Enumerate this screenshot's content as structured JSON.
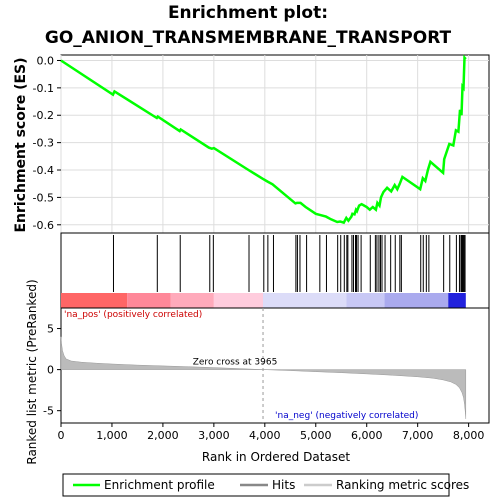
{
  "chart_data": {
    "type": "line",
    "title": [
      "Enrichment plot:",
      "GO_ANION_TRANSMEMBRANE_TRANSPORT"
    ],
    "xlabel": "Rank in Ordered Dataset",
    "es_panel": {
      "ylabel": "Enrichment score (ES)",
      "ylim": [
        -0.63,
        0.02
      ],
      "yticks": [
        0.0,
        -0.1,
        -0.2,
        -0.3,
        -0.4,
        -0.5,
        -0.6
      ],
      "ytick_labels": [
        "0.0",
        "-0.1",
        "-0.2",
        "-0.3",
        "-0.4",
        "-0.5",
        "-0.6"
      ],
      "grid": true,
      "series": {
        "name": "Enrichment profile",
        "color": "#00ff00",
        "x": [
          0,
          1020,
          1050,
          1880,
          1900,
          2330,
          2350,
          2900,
          2960,
          3000,
          3680,
          3960,
          4050,
          4150,
          4600,
          4630,
          4700,
          4800,
          5000,
          5100,
          5200,
          5300,
          5420,
          5480,
          5550,
          5600,
          5640,
          5700,
          5720,
          5760,
          5790,
          5810,
          5850,
          5900,
          5950,
          6000,
          6060,
          6120,
          6180,
          6210,
          6250,
          6280,
          6330,
          6400,
          6480,
          6550,
          6600,
          6650,
          6700,
          7050,
          7100,
          7150,
          7200,
          7250,
          7500,
          7520,
          7620,
          7700,
          7750,
          7800,
          7830,
          7860,
          7880,
          7900,
          7920,
          7945
        ],
        "y": [
          0.0,
          -0.125,
          -0.113,
          -0.21,
          -0.205,
          -0.258,
          -0.252,
          -0.318,
          -0.322,
          -0.32,
          -0.4,
          -0.432,
          -0.442,
          -0.452,
          -0.522,
          -0.52,
          -0.52,
          -0.535,
          -0.56,
          -0.565,
          -0.57,
          -0.58,
          -0.59,
          -0.588,
          -0.592,
          -0.575,
          -0.585,
          -0.57,
          -0.56,
          -0.562,
          -0.545,
          -0.55,
          -0.53,
          -0.525,
          -0.53,
          -0.535,
          -0.545,
          -0.535,
          -0.545,
          -0.52,
          -0.53,
          -0.5,
          -0.48,
          -0.465,
          -0.478,
          -0.455,
          -0.47,
          -0.45,
          -0.425,
          -0.47,
          -0.43,
          -0.44,
          -0.4,
          -0.37,
          -0.41,
          -0.36,
          -0.305,
          -0.31,
          -0.255,
          -0.26,
          -0.18,
          -0.2,
          -0.095,
          -0.1,
          0.01,
          0.005
        ]
      }
    },
    "hits_panel": {
      "hit_ranks": [
        1030,
        1890,
        2340,
        2920,
        2990,
        3690,
        3980,
        4060,
        4170,
        4610,
        4640,
        4690,
        4820,
        5080,
        5210,
        5430,
        5490,
        5560,
        5610,
        5630,
        5710,
        5740,
        5780,
        5800,
        5830,
        5890,
        6070,
        6170,
        6200,
        6240,
        6270,
        6300,
        6360,
        6470,
        6560,
        6650,
        6680,
        7060,
        7110,
        7170,
        7220,
        7510,
        7630,
        7760,
        7820,
        7850,
        7870,
        7890,
        7910,
        7930
      ],
      "color_bands": [
        {
          "from": 0,
          "to": 1300,
          "color": "#ff6666"
        },
        {
          "from": 1300,
          "to": 2150,
          "color": "#ff8899"
        },
        {
          "from": 2150,
          "to": 3000,
          "color": "#ffaabb"
        },
        {
          "from": 3000,
          "to": 3965,
          "color": "#ffccdd"
        },
        {
          "from": 3965,
          "to": 5600,
          "color": "#dcdcf8"
        },
        {
          "from": 5600,
          "to": 6350,
          "color": "#c8c8f5"
        },
        {
          "from": 6350,
          "to": 7600,
          "color": "#aaaaee"
        },
        {
          "from": 7600,
          "to": 7945,
          "color": "#2222dd"
        }
      ]
    },
    "metric_panel": {
      "ylabel": "Ranked list metric (PreRanked)",
      "ylim": [
        -6.5,
        7.5
      ],
      "yticks": [
        5,
        0,
        -5
      ],
      "ytick_labels": [
        "5",
        "0",
        "-5"
      ],
      "zero_cross_label": "Zero cross at 3965",
      "zero_cross_rank": 3965,
      "pos_label": "'na_pos' (positively correlated)",
      "neg_label": "'na_neg' (negatively correlated)",
      "pos_color": "#cc0000",
      "neg_color": "#0000cc",
      "profile": {
        "x": [
          0,
          10,
          30,
          60,
          100,
          200,
          400,
          700,
          1000,
          1500,
          2000,
          2500,
          3000,
          3500,
          3965,
          4500,
          5000,
          5500,
          6000,
          6500,
          7000,
          7300,
          7500,
          7650,
          7750,
          7820,
          7870,
          7900,
          7920,
          7935,
          7945
        ],
        "y": [
          4.0,
          3.2,
          2.3,
          1.7,
          1.3,
          1.05,
          0.9,
          0.78,
          0.68,
          0.55,
          0.45,
          0.35,
          0.25,
          0.12,
          0.0,
          -0.12,
          -0.25,
          -0.38,
          -0.52,
          -0.68,
          -0.88,
          -1.05,
          -1.25,
          -1.5,
          -1.8,
          -2.2,
          -2.8,
          -3.4,
          -4.2,
          -5.2,
          -6.0
        ]
      }
    },
    "xlim": [
      0,
      8400
    ],
    "xticks": [
      0,
      1000,
      2000,
      3000,
      4000,
      5000,
      6000,
      7000,
      8000
    ],
    "xtick_labels": [
      "0",
      "1,000",
      "2,000",
      "3,000",
      "4,000",
      "5,000",
      "6,000",
      "7,000",
      "8,000"
    ],
    "legend": {
      "placement": "bottom",
      "items": [
        {
          "label": "Enrichment profile",
          "color": "#00ff00"
        },
        {
          "label": "Hits",
          "color": "#000000"
        },
        {
          "label": "Ranking metric scores",
          "color": "#cccccc"
        }
      ]
    }
  }
}
